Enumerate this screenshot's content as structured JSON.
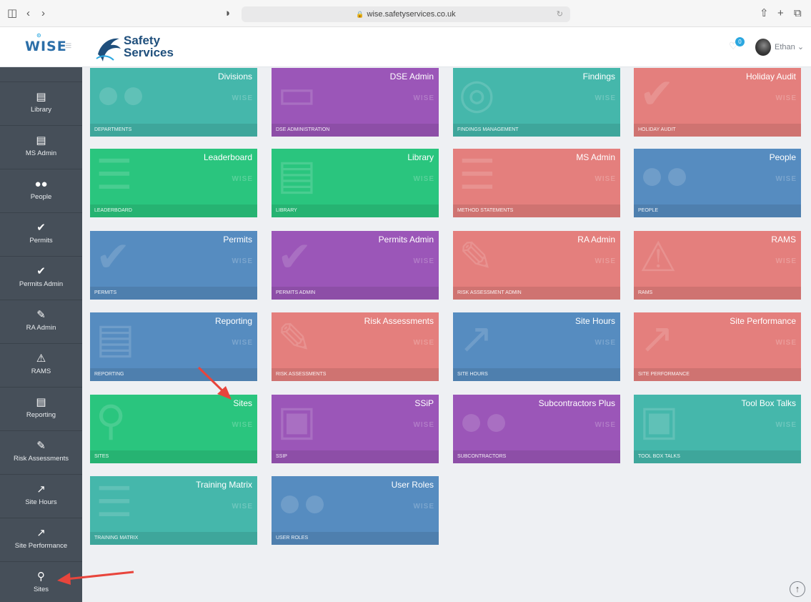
{
  "browser": {
    "url": "wise.safetyservices.co.uk",
    "icons": [
      "sidebar-icon",
      "back-icon",
      "forward-icon",
      "shield-icon",
      "reload-icon",
      "share-icon",
      "new-tab-icon",
      "tabs-icon"
    ]
  },
  "brand": {
    "wise_logo": "WISE",
    "company_line1": "Safety",
    "company_line2": "Services"
  },
  "header": {
    "notification_count": "0",
    "user_name": "Ethan"
  },
  "sidebar": {
    "items": [
      {
        "label": "Library",
        "icon": "book-icon"
      },
      {
        "label": "MS Admin",
        "icon": "list-icon"
      },
      {
        "label": "People",
        "icon": "users-icon"
      },
      {
        "label": "Permits",
        "icon": "check-icon"
      },
      {
        "label": "Permits Admin",
        "icon": "check-icon"
      },
      {
        "label": "RA Admin",
        "icon": "pencil-icon"
      },
      {
        "label": "RAMS",
        "icon": "warning-icon"
      },
      {
        "label": "Reporting",
        "icon": "document-icon"
      },
      {
        "label": "Risk Assessments",
        "icon": "pencil-icon"
      },
      {
        "label": "Site Hours",
        "icon": "chart-icon"
      },
      {
        "label": "Site Performance",
        "icon": "chart-icon"
      },
      {
        "label": "Sites",
        "icon": "map-pin-icon"
      }
    ]
  },
  "tiles": [
    {
      "title": "Divisions",
      "footer": "DEPARTMENTS",
      "color": "#45b7ab",
      "icon": "users-icon"
    },
    {
      "title": "DSE Admin",
      "footer": "DSE ADMINISTRATION",
      "color": "#9b56b8",
      "icon": "monitor-icon"
    },
    {
      "title": "Findings",
      "footer": "FINDINGS MANAGEMENT",
      "color": "#45b7ab",
      "icon": "eye-icon"
    },
    {
      "title": "Holiday Audit",
      "footer": "HOLIDAY AUDIT",
      "color": "#e47f7d",
      "icon": "check-icon"
    },
    {
      "title": "Leaderboard",
      "footer": "LEADERBOARD",
      "color": "#2ac57e",
      "icon": "list-icon"
    },
    {
      "title": "Library",
      "footer": "LIBRARY",
      "color": "#2ac57e",
      "icon": "book-icon"
    },
    {
      "title": "MS Admin",
      "footer": "METHOD STATEMENTS",
      "color": "#e47f7d",
      "icon": "list-icon"
    },
    {
      "title": "People",
      "footer": "PEOPLE",
      "color": "#568cc0",
      "icon": "users-icon"
    },
    {
      "title": "Permits",
      "footer": "PERMITS",
      "color": "#568cc0",
      "icon": "check-icon"
    },
    {
      "title": "Permits Admin",
      "footer": "PERMITS ADMIN",
      "color": "#9b56b8",
      "icon": "check-icon"
    },
    {
      "title": "RA Admin",
      "footer": "RISK ASSESSMENT ADMIN",
      "color": "#e47f7d",
      "icon": "pencil-icon"
    },
    {
      "title": "RAMS",
      "footer": "RAMS",
      "color": "#e47f7d",
      "icon": "warning-icon"
    },
    {
      "title": "Reporting",
      "footer": "REPORTING",
      "color": "#568cc0",
      "icon": "document-icon"
    },
    {
      "title": "Risk Assessments",
      "footer": "RISK ASSESSMENTS",
      "color": "#e47f7d",
      "icon": "pencil-icon"
    },
    {
      "title": "Site Hours",
      "footer": "SITE HOURS",
      "color": "#568cc0",
      "icon": "chart-icon"
    },
    {
      "title": "Site Performance",
      "footer": "SITE PERFORMANCE",
      "color": "#e47f7d",
      "icon": "chart-icon"
    },
    {
      "title": "Sites",
      "footer": "SITES",
      "color": "#2ac57e",
      "icon": "map-pin-icon"
    },
    {
      "title": "SSiP",
      "footer": "SSIP",
      "color": "#9b56b8",
      "icon": "box-icon"
    },
    {
      "title": "Subcontractors Plus",
      "footer": "SUBCONTRACTORS",
      "color": "#9b56b8",
      "icon": "users-icon"
    },
    {
      "title": "Tool Box Talks",
      "footer": "TOOL BOX TALKS",
      "color": "#45b7ab",
      "icon": "briefcase-icon"
    },
    {
      "title": "Training Matrix",
      "footer": "TRAINING MATRIX",
      "color": "#45b7ab",
      "icon": "list-icon"
    },
    {
      "title": "User Roles",
      "footer": "USER ROLES",
      "color": "#568cc0",
      "icon": "users-icon"
    }
  ],
  "tile_watermark": "WISE",
  "annotation_color": "#e8453c"
}
